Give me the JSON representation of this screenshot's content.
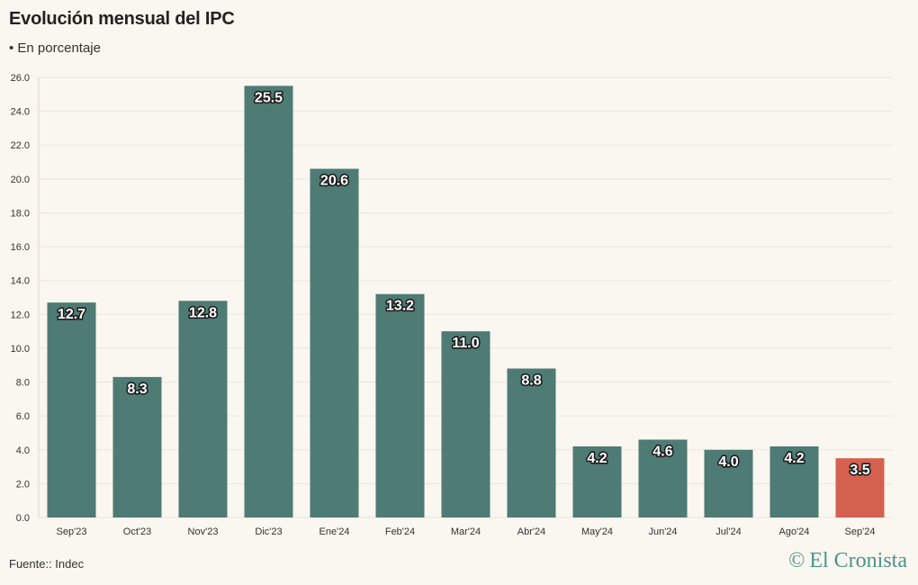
{
  "chart_data": {
    "type": "bar",
    "title": "Evolución mensual del IPC",
    "subtitle": "• En porcentaje",
    "source": "Fuente:: Indec",
    "categories": [
      "Sep'23",
      "Oct'23",
      "Nov'23",
      "Dic'23",
      "Ene'24",
      "Feb'24",
      "Mar'24",
      "Abr'24",
      "May'24",
      "Jun'24",
      "Jul'24",
      "Ago'24",
      "Sep'24"
    ],
    "values": [
      12.7,
      8.3,
      12.8,
      25.5,
      20.6,
      13.2,
      11.0,
      8.8,
      4.2,
      4.6,
      4.0,
      4.2,
      3.5
    ],
    "value_labels": [
      "12.7",
      "8.3",
      "12.8",
      "25.5",
      "20.6",
      "13.2",
      "11.0",
      "8.8",
      "4.2",
      "4.6",
      "4.0",
      "4.2",
      "3.5"
    ],
    "ylim": [
      0,
      26
    ],
    "yticks": [
      "0.0",
      "2.0",
      "4.0",
      "6.0",
      "8.0",
      "10.0",
      "12.0",
      "14.0",
      "16.0",
      "18.0",
      "20.0",
      "22.0",
      "24.0",
      "26.0"
    ],
    "grid": true,
    "bar_colors": [
      "#4e7b74",
      "#4e7b74",
      "#4e7b74",
      "#4e7b74",
      "#4e7b74",
      "#4e7b74",
      "#4e7b74",
      "#4e7b74",
      "#4e7b74",
      "#4e7b74",
      "#4e7b74",
      "#4e7b74",
      "#d4614f"
    ]
  },
  "branding": {
    "logo_symbol": "©",
    "logo_text": "El Cronista"
  },
  "colors": {
    "background": "#faf6f0",
    "gridline": "#ebe6de",
    "logo": "#4a938b"
  }
}
